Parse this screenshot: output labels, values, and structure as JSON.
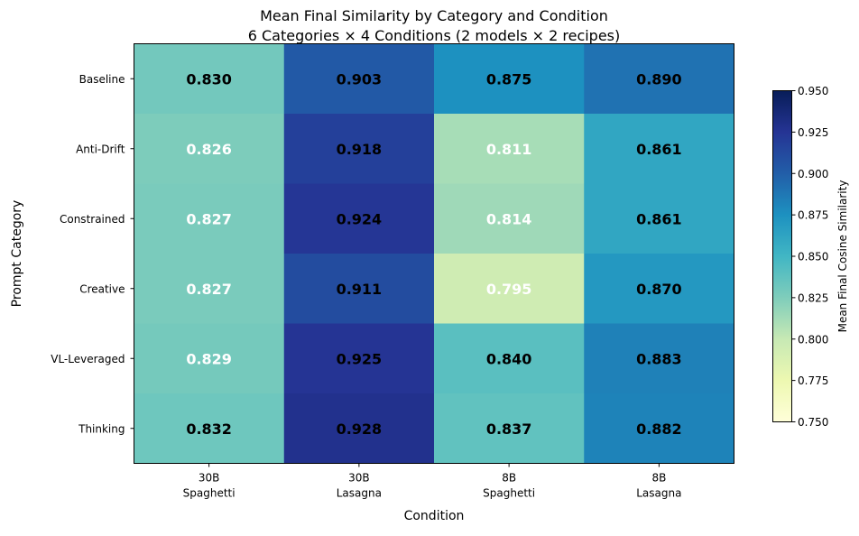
{
  "chart_data": {
    "type": "heatmap",
    "title": "Mean Final Similarity by Category and Condition",
    "subtitle": "6 Categories × 4 Conditions (2 models × 2 recipes)",
    "xlabel": "Condition",
    "ylabel": "Prompt Category",
    "x_categories": [
      [
        "30B",
        "Spaghetti"
      ],
      [
        "30B",
        "Lasagna"
      ],
      [
        "8B",
        "Spaghetti"
      ],
      [
        "8B",
        "Lasagna"
      ]
    ],
    "y_categories": [
      "Baseline",
      "Anti-Drift",
      "Constrained",
      "Creative",
      "VL-Leveraged",
      "Thinking"
    ],
    "values": [
      [
        0.83,
        0.903,
        0.875,
        0.89
      ],
      [
        0.826,
        0.918,
        0.811,
        0.861
      ],
      [
        0.827,
        0.924,
        0.814,
        0.861
      ],
      [
        0.827,
        0.911,
        0.795,
        0.87
      ],
      [
        0.829,
        0.925,
        0.84,
        0.883
      ],
      [
        0.832,
        0.928,
        0.837,
        0.882
      ]
    ],
    "label_colors": [
      [
        "black",
        "black",
        "black",
        "black"
      ],
      [
        "white",
        "black",
        "white",
        "black"
      ],
      [
        "white",
        "black",
        "white",
        "black"
      ],
      [
        "white",
        "black",
        "white",
        "black"
      ],
      [
        "white",
        "black",
        "black",
        "black"
      ],
      [
        "black",
        "black",
        "black",
        "black"
      ]
    ],
    "colormap": "YlGnBu",
    "colormap_stops": [
      "#ffffd9",
      "#edf8b1",
      "#c7e9b4",
      "#7fcdbb",
      "#41b6c4",
      "#1d91c0",
      "#225ea8",
      "#253494",
      "#081d58"
    ],
    "vlim": [
      0.75,
      0.95
    ],
    "colorbar": {
      "label": "Mean Final Cosine Similarity",
      "ticks": [
        "0.750",
        "0.775",
        "0.800",
        "0.825",
        "0.850",
        "0.875",
        "0.900",
        "0.925",
        "0.950"
      ]
    }
  }
}
